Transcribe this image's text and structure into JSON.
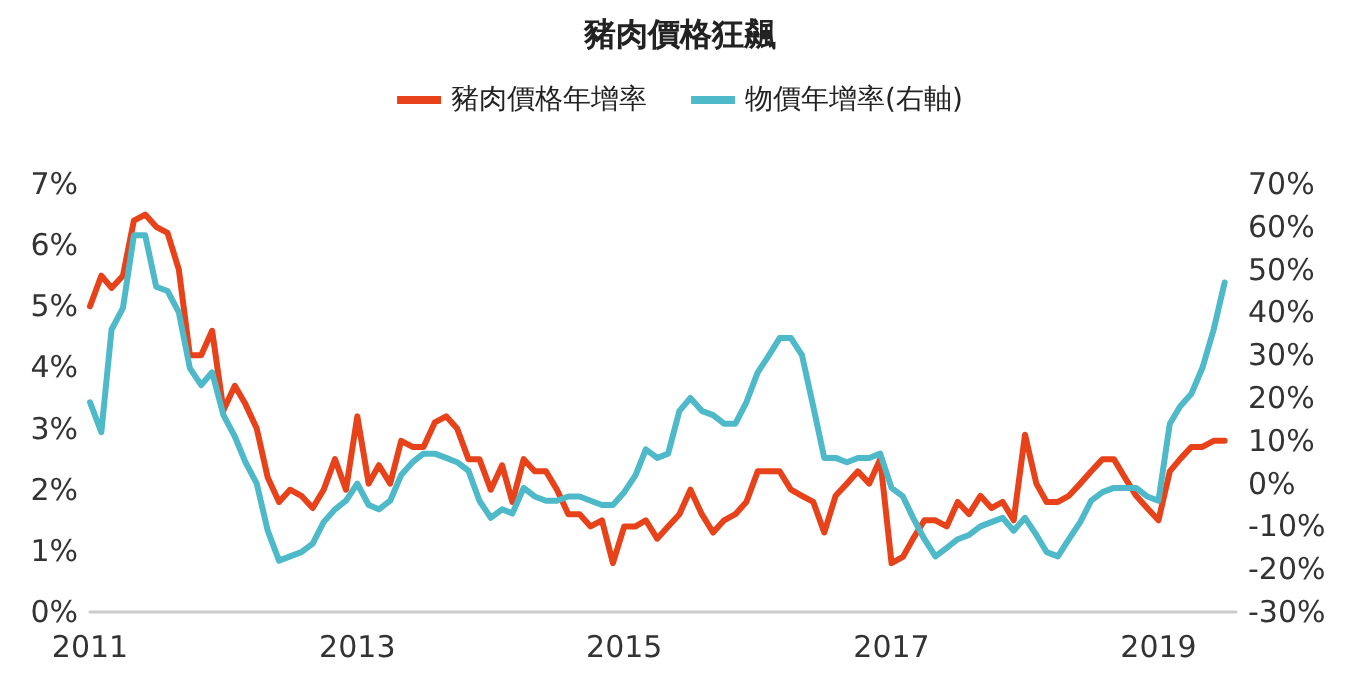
{
  "chart_data": {
    "type": "line",
    "title": "豬肉價格狂飆",
    "x": [
      "2011-01",
      "2011-02",
      "2011-03",
      "2011-04",
      "2011-05",
      "2011-06",
      "2011-07",
      "2011-08",
      "2011-09",
      "2011-10",
      "2011-11",
      "2011-12",
      "2012-01",
      "2012-02",
      "2012-03",
      "2012-04",
      "2012-05",
      "2012-06",
      "2012-07",
      "2012-08",
      "2012-09",
      "2012-10",
      "2012-11",
      "2012-12",
      "2013-01",
      "2013-02",
      "2013-03",
      "2013-04",
      "2013-05",
      "2013-06",
      "2013-07",
      "2013-08",
      "2013-09",
      "2013-10",
      "2013-11",
      "2013-12",
      "2014-01",
      "2014-02",
      "2014-03",
      "2014-04",
      "2014-05",
      "2014-06",
      "2014-07",
      "2014-08",
      "2014-09",
      "2014-10",
      "2014-11",
      "2014-12",
      "2015-01",
      "2015-02",
      "2015-03",
      "2015-04",
      "2015-05",
      "2015-06",
      "2015-07",
      "2015-08",
      "2015-09",
      "2015-10",
      "2015-11",
      "2015-12",
      "2016-01",
      "2016-02",
      "2016-03",
      "2016-04",
      "2016-05",
      "2016-06",
      "2016-07",
      "2016-08",
      "2016-09",
      "2016-10",
      "2016-11",
      "2016-12",
      "2017-01",
      "2017-02",
      "2017-03",
      "2017-04",
      "2017-05",
      "2017-06",
      "2017-07",
      "2017-08",
      "2017-09",
      "2017-10",
      "2017-11",
      "2017-12",
      "2018-01",
      "2018-02",
      "2018-03",
      "2018-04",
      "2018-05",
      "2018-06",
      "2018-07",
      "2018-08",
      "2018-09",
      "2018-10",
      "2018-11",
      "2018-12",
      "2019-01",
      "2019-02",
      "2019-03",
      "2019-04",
      "2019-05",
      "2019-06",
      "2019-07"
    ],
    "series": [
      {
        "name": "豬肉價格年增率",
        "color": "#e8421a",
        "values": [
          5.0,
          5.5,
          5.3,
          5.5,
          6.4,
          6.5,
          6.3,
          6.2,
          5.6,
          4.2,
          4.2,
          4.6,
          3.3,
          3.7,
          3.4,
          3.0,
          2.2,
          1.8,
          2.0,
          1.9,
          1.7,
          2.0,
          2.5,
          2.0,
          3.2,
          2.1,
          2.4,
          2.1,
          2.8,
          2.7,
          2.7,
          3.1,
          3.2,
          3.0,
          2.5,
          2.5,
          2.0,
          2.4,
          1.8,
          2.5,
          2.3,
          2.3,
          2.0,
          1.6,
          1.6,
          1.4,
          1.5,
          0.8,
          1.4,
          1.4,
          1.5,
          1.2,
          1.4,
          1.6,
          2.0,
          1.6,
          1.3,
          1.5,
          1.6,
          1.8,
          2.3,
          2.3,
          2.3,
          2.0,
          1.9,
          1.8,
          1.3,
          1.9,
          2.1,
          2.3,
          2.1,
          2.5,
          0.8,
          0.9,
          1.2,
          1.5,
          1.5,
          1.4,
          1.8,
          1.6,
          1.9,
          1.7,
          1.8,
          1.5,
          2.9,
          2.1,
          1.8,
          1.8,
          1.9,
          2.1,
          2.3,
          2.5,
          2.5,
          2.2,
          1.9,
          1.7,
          1.5,
          2.3,
          2.5,
          2.7,
          2.7,
          2.8,
          2.8
        ]
      },
      {
        "name": "物價年增率(右軸)",
        "color": "#4db9c9",
        "axis": "y2",
        "values": [
          19,
          12,
          36,
          41,
          58,
          58,
          46,
          45,
          40,
          27,
          23,
          26,
          16,
          11,
          5,
          0,
          -11,
          -18,
          -17,
          -16,
          -14,
          -9,
          -6,
          -4,
          0,
          -5,
          -6,
          -4,
          2,
          5,
          7,
          7,
          6,
          5,
          3,
          -4,
          -8,
          -6,
          -7,
          -1,
          -3,
          -4,
          -4,
          -3,
          -3,
          -4,
          -5,
          -5,
          -2,
          2,
          8,
          6,
          7,
          17,
          20,
          17,
          16,
          14,
          14,
          19,
          26,
          30,
          34,
          34,
          30,
          18,
          6,
          6,
          5,
          6,
          6,
          7,
          -1,
          -3,
          -8,
          -13,
          -17,
          -15,
          -13,
          -12,
          -10,
          -9,
          -8,
          -11,
          -8,
          -12,
          -16,
          -17,
          -13,
          -9,
          -4,
          -2,
          -1,
          -1,
          -1,
          -3,
          -4,
          14,
          18,
          21,
          27,
          36,
          47
        ]
      }
    ],
    "xlim": [
      "2011-01",
      "2019-08"
    ],
    "xticks": [
      {
        "value": "2011",
        "label": "2011"
      },
      {
        "value": "2013",
        "label": "2013"
      },
      {
        "value": "2015",
        "label": "2015"
      },
      {
        "value": "2017",
        "label": "2017"
      },
      {
        "value": "2019",
        "label": "2019"
      }
    ],
    "ylim": [
      0,
      7
    ],
    "yticks": [
      {
        "value": 0,
        "label": "0%"
      },
      {
        "value": 1,
        "label": "1%"
      },
      {
        "value": 2,
        "label": "2%"
      },
      {
        "value": 3,
        "label": "3%"
      },
      {
        "value": 4,
        "label": "4%"
      },
      {
        "value": 5,
        "label": "5%"
      },
      {
        "value": 6,
        "label": "6%"
      },
      {
        "value": 7,
        "label": "7%"
      }
    ],
    "y2lim": [
      -30,
      70
    ],
    "y2ticks": [
      {
        "value": -30,
        "label": "-30%"
      },
      {
        "value": -20,
        "label": "-20%"
      },
      {
        "value": -10,
        "label": "-10%"
      },
      {
        "value": 0,
        "label": "0%"
      },
      {
        "value": 10,
        "label": "10%"
      },
      {
        "value": 20,
        "label": "20%"
      },
      {
        "value": 30,
        "label": "30%"
      },
      {
        "value": 40,
        "label": "40%"
      },
      {
        "value": 50,
        "label": "50%"
      },
      {
        "value": 60,
        "label": "60%"
      },
      {
        "value": 70,
        "label": "70%"
      }
    ],
    "legend": "top",
    "grid": false,
    "marker": "none",
    "line_style": "solid"
  }
}
